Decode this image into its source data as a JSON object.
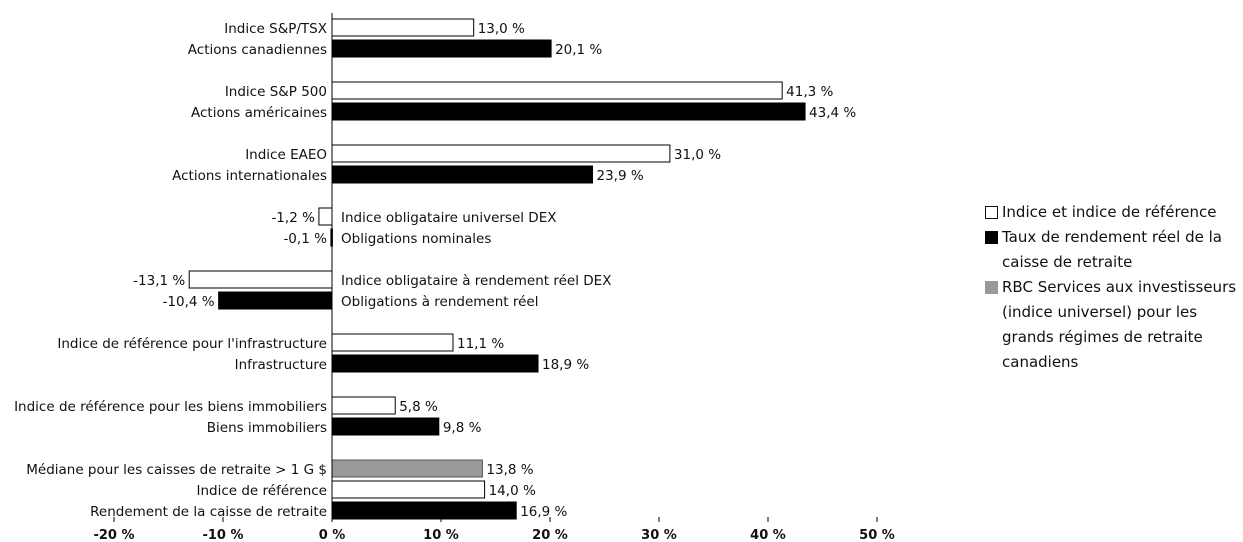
{
  "chart_data": {
    "type": "bar",
    "orientation": "horizontal",
    "xlim": [
      -20,
      50
    ],
    "x_ticks": [
      "-20 %",
      "-10 %",
      "0 %",
      "10 %",
      "20 %",
      "30 %",
      "40 %",
      "50 %"
    ],
    "groups": [
      {
        "bars": [
          {
            "label": "Indice S&P/TSX",
            "value": 13.0,
            "display": "13,0 %",
            "series": "index"
          },
          {
            "label": "Actions canadiennes",
            "value": 20.1,
            "display": "20,1 %",
            "series": "fund"
          }
        ]
      },
      {
        "bars": [
          {
            "label": "Indice S&P 500",
            "value": 41.3,
            "display": "41,3 %",
            "series": "index"
          },
          {
            "label": "Actions américaines",
            "value": 43.4,
            "display": "43,4 %",
            "series": "fund"
          }
        ]
      },
      {
        "bars": [
          {
            "label": "Indice EAEO",
            "value": 31.0,
            "display": "31,0 %",
            "series": "index"
          },
          {
            "label": "Actions internationales",
            "value": 23.9,
            "display": "23,9 %",
            "series": "fund"
          }
        ]
      },
      {
        "bars": [
          {
            "label": "Indice obligataire universel DEX",
            "value": -1.2,
            "display": "-1,2 %",
            "series": "index"
          },
          {
            "label": "Obligations nominales",
            "value": -0.1,
            "display": "-0,1 %",
            "series": "fund"
          }
        ]
      },
      {
        "bars": [
          {
            "label": "Indice obligataire à rendement réel DEX",
            "value": -13.1,
            "display": "-13,1 %",
            "series": "index"
          },
          {
            "label": "Obligations à rendement réel",
            "value": -10.4,
            "display": "-10,4 %",
            "series": "fund"
          }
        ]
      },
      {
        "bars": [
          {
            "label": "Indice de référence pour l'infrastructure",
            "value": 11.1,
            "display": "11,1 %",
            "series": "index"
          },
          {
            "label": "Infrastructure",
            "value": 18.9,
            "display": "18,9 %",
            "series": "fund"
          }
        ]
      },
      {
        "bars": [
          {
            "label": "Indice de référence pour les biens immobiliers",
            "value": 5.8,
            "display": "5,8 %",
            "series": "index"
          },
          {
            "label": "Biens immobiliers",
            "value": 9.8,
            "display": "9,8 %",
            "series": "fund"
          }
        ]
      },
      {
        "bars": [
          {
            "label": "Médiane pour les caisses de retraite > 1 G $",
            "value": 13.8,
            "display": "13,8 %",
            "series": "median"
          },
          {
            "label": "Indice de référence",
            "value": 14.0,
            "display": "14,0 %",
            "series": "index"
          },
          {
            "label": "Rendement de la caisse de retraite",
            "value": 16.9,
            "display": "16,9 %",
            "series": "fund"
          }
        ]
      }
    ],
    "series_styles": {
      "index": {
        "fill": "#ffffff",
        "stroke": "#000000"
      },
      "fund": {
        "fill": "#000000",
        "stroke": "#000000"
      },
      "median": {
        "fill": "#999999",
        "stroke": "#555555"
      }
    },
    "legend": {
      "placement": "right",
      "items": [
        {
          "series": "index",
          "label": "Indice et indice de référence"
        },
        {
          "series": "fund",
          "label": "Taux de rendement réel de la caisse de retraite"
        },
        {
          "series": "median",
          "label": "RBC Services aux investisseurs (indice universel) pour les grands régimes de retraite canadiens"
        }
      ]
    }
  }
}
